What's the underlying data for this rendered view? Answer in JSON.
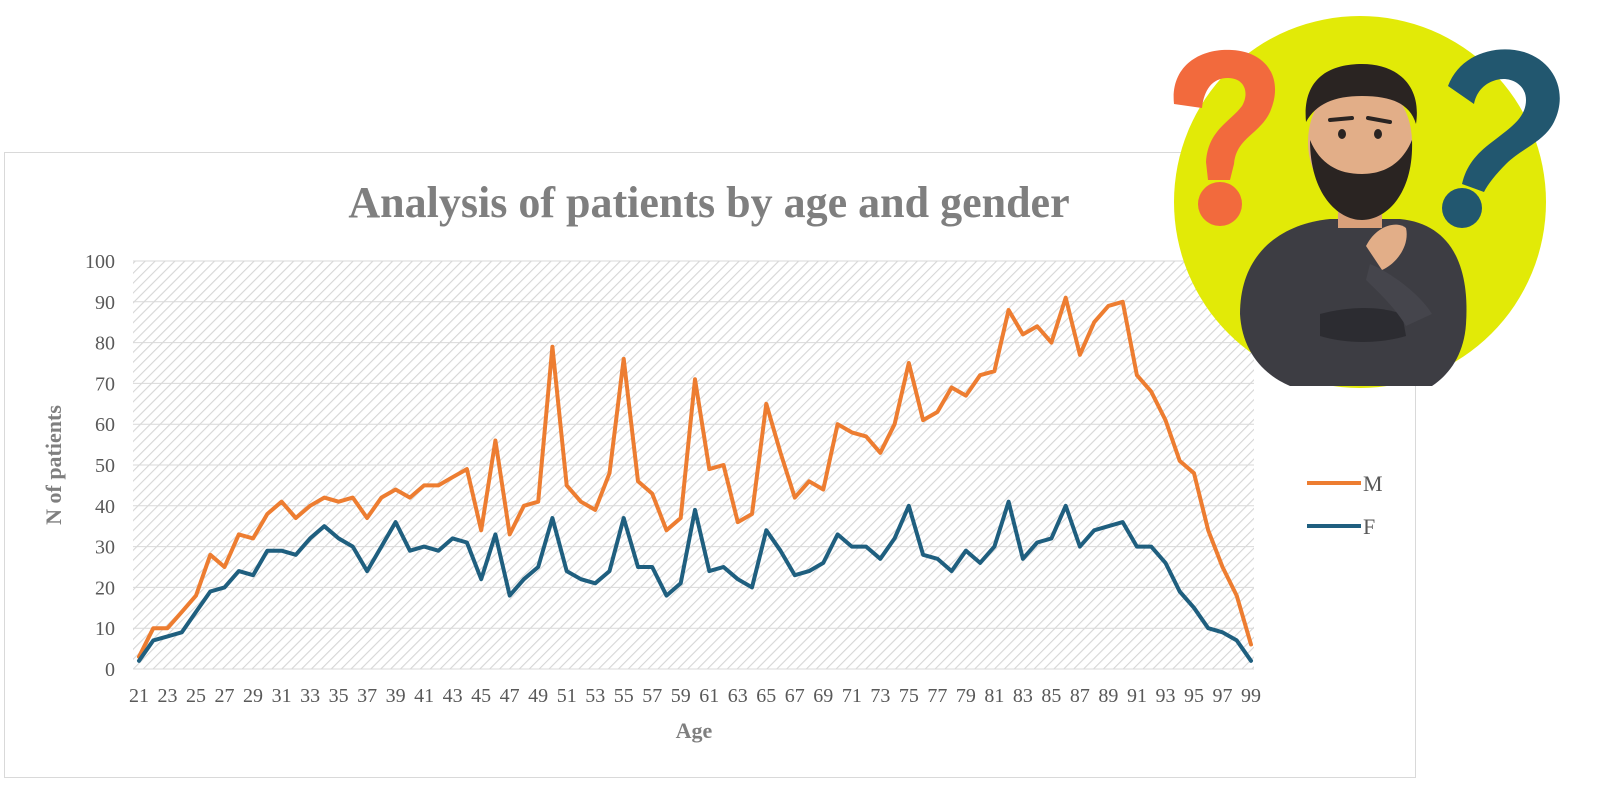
{
  "chart_data": {
    "type": "line",
    "title": "Analysis of patients by age and gender",
    "xlabel": "Age",
    "ylabel": "N of patients",
    "ylim": [
      0,
      100
    ],
    "y_ticks": [
      "0",
      "10",
      "20",
      "30",
      "40",
      "50",
      "60",
      "70",
      "80",
      "90",
      "100"
    ],
    "x": [
      21,
      22,
      23,
      24,
      25,
      26,
      27,
      28,
      29,
      30,
      31,
      32,
      33,
      34,
      35,
      36,
      37,
      38,
      39,
      40,
      41,
      42,
      43,
      44,
      45,
      46,
      47,
      48,
      49,
      50,
      51,
      52,
      53,
      54,
      55,
      56,
      57,
      58,
      59,
      60,
      61,
      62,
      63,
      64,
      65,
      66,
      67,
      68,
      69,
      70,
      71,
      72,
      73,
      74,
      75,
      76,
      77,
      78,
      79,
      80,
      81,
      82,
      83,
      84,
      85,
      86,
      87,
      88,
      89,
      90,
      91,
      92,
      93,
      94,
      95,
      96,
      97,
      98,
      99
    ],
    "x_tick_labels": [
      "21",
      "23",
      "25",
      "27",
      "29",
      "31",
      "33",
      "35",
      "37",
      "39",
      "41",
      "43",
      "45",
      "47",
      "49",
      "51",
      "53",
      "55",
      "57",
      "59",
      "61",
      "63",
      "65",
      "67",
      "69",
      "71",
      "73",
      "75",
      "77",
      "79",
      "81",
      "83",
      "85",
      "87",
      "89",
      "91",
      "93",
      "95",
      "97",
      "99"
    ],
    "grid": true,
    "legend_position": "right",
    "series": [
      {
        "name": "M",
        "color": "#ed7d31",
        "values": [
          3,
          10,
          10,
          14,
          18,
          28,
          25,
          33,
          32,
          38,
          41,
          37,
          40,
          42,
          41,
          42,
          37,
          42,
          44,
          42,
          45,
          45,
          47,
          49,
          34,
          56,
          33,
          40,
          41,
          79,
          45,
          41,
          39,
          48,
          76,
          46,
          43,
          34,
          37,
          71,
          49,
          50,
          36,
          38,
          65,
          53,
          42,
          46,
          44,
          60,
          58,
          57,
          53,
          60,
          75,
          61,
          63,
          69,
          67,
          72,
          73,
          88,
          82,
          84,
          80,
          91,
          77,
          85,
          89,
          90,
          72,
          68,
          61,
          51,
          48,
          34,
          25,
          18,
          6
        ]
      },
      {
        "name": "F",
        "color": "#1f5f7f",
        "values": [
          2,
          7,
          8,
          9,
          14,
          19,
          20,
          24,
          23,
          29,
          29,
          28,
          32,
          35,
          32,
          30,
          24,
          30,
          36,
          29,
          30,
          29,
          32,
          31,
          22,
          33,
          18,
          22,
          25,
          37,
          24,
          22,
          21,
          24,
          37,
          25,
          25,
          18,
          21,
          39,
          24,
          25,
          22,
          20,
          34,
          29,
          23,
          24,
          26,
          33,
          30,
          30,
          27,
          32,
          40,
          28,
          27,
          24,
          29,
          26,
          30,
          41,
          27,
          31,
          32,
          40,
          30,
          34,
          35,
          36,
          30,
          30,
          26,
          19,
          15,
          10,
          9,
          7,
          2
        ]
      }
    ]
  },
  "illustration": {
    "circle_color": "#e2ea07",
    "question_mark_left_color": "#f26a3d",
    "question_mark_right_color": "#22576f",
    "icon": "thinking-man-icon"
  }
}
